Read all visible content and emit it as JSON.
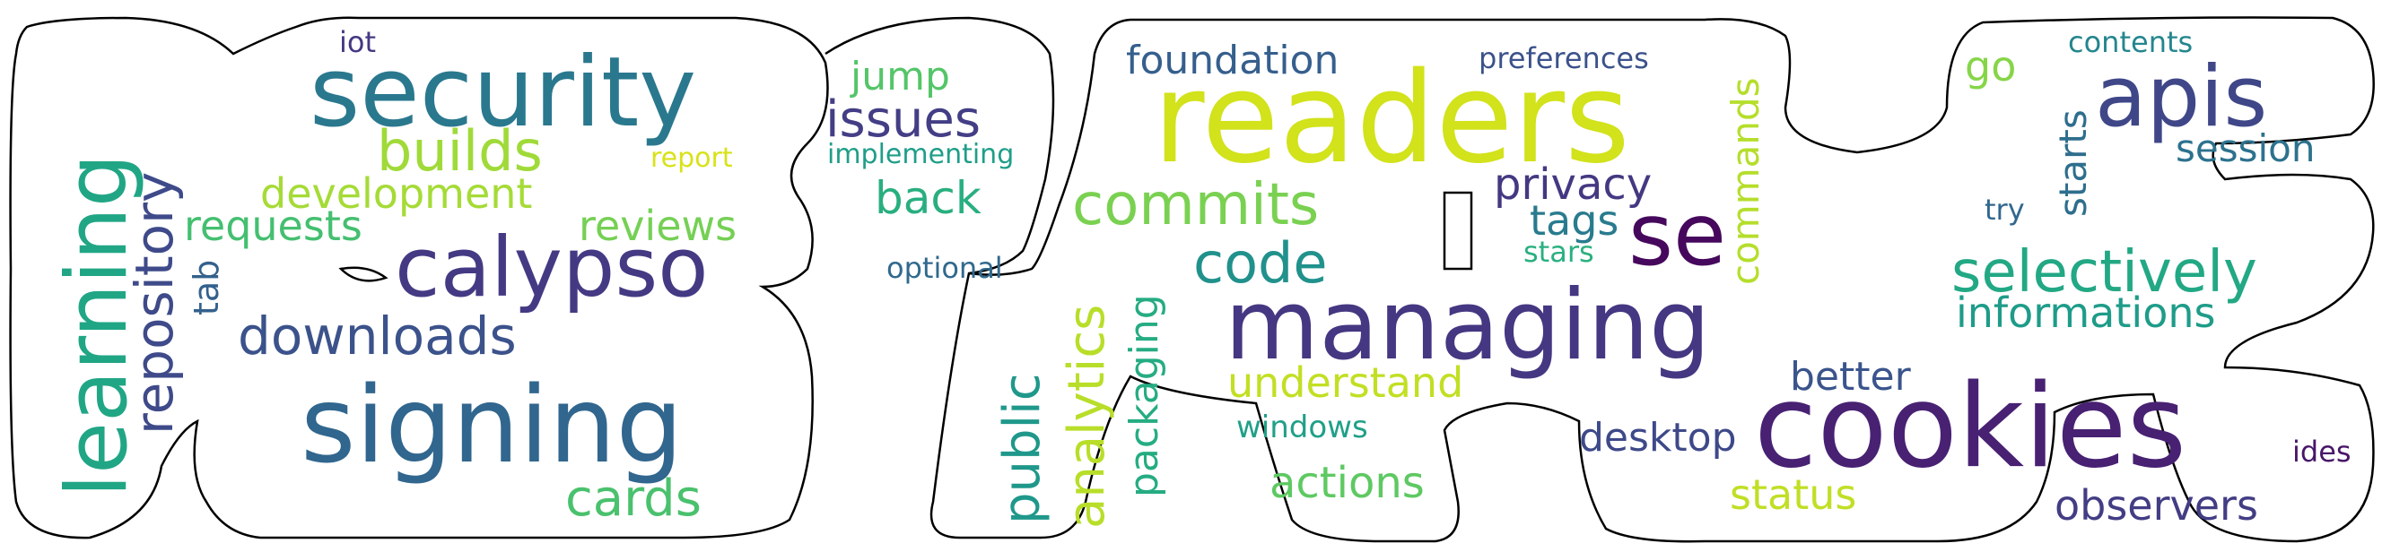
{
  "words": [
    {
      "text": "readers",
      "color": "#d2e21b"
    },
    {
      "text": "security",
      "color": "#2a788e"
    },
    {
      "text": "signing",
      "color": "#31668e"
    },
    {
      "text": "calypso",
      "color": "#443a83"
    },
    {
      "text": "cookies",
      "color": "#482173"
    },
    {
      "text": "managing",
      "color": "#453781"
    },
    {
      "text": "apis",
      "color": "#3f4788"
    },
    {
      "text": "se",
      "color": "#46085c"
    },
    {
      "text": "learning",
      "color": "#21a685"
    },
    {
      "text": "downloads",
      "color": "#3b528b"
    },
    {
      "text": "builds",
      "color": "#a0da39"
    },
    {
      "text": "commits",
      "color": "#7ad151"
    },
    {
      "text": "code",
      "color": "#21918c"
    },
    {
      "text": "cards",
      "color": "#4ac16d"
    },
    {
      "text": "repository",
      "color": "#3e4a89"
    },
    {
      "text": "selectively",
      "color": "#22a884"
    },
    {
      "text": "development",
      "color": "#a5db36"
    },
    {
      "text": "informations",
      "color": "#1e9c89"
    },
    {
      "text": "requests",
      "color": "#44bf70"
    },
    {
      "text": "reviews",
      "color": "#75d054"
    },
    {
      "text": "issues",
      "color": "#433e85"
    },
    {
      "text": "jump",
      "color": "#54c568"
    },
    {
      "text": "back",
      "color": "#29af7f"
    },
    {
      "text": "foundation",
      "color": "#355f8d"
    },
    {
      "text": "privacy",
      "color": "#453882"
    },
    {
      "text": "tags",
      "color": "#297b8e"
    },
    {
      "text": "commands",
      "color": "#b5de2b"
    },
    {
      "text": "understand",
      "color": "#c2df23"
    },
    {
      "text": "public",
      "color": "#1f988b"
    },
    {
      "text": "analytics",
      "color": "#b8de29"
    },
    {
      "text": "packaging",
      "color": "#25ac82"
    },
    {
      "text": "actions",
      "color": "#5ec962"
    },
    {
      "text": "desktop",
      "color": "#3e4989"
    },
    {
      "text": "better",
      "color": "#3a548c"
    },
    {
      "text": "status",
      "color": "#c0df25"
    },
    {
      "text": "observers",
      "color": "#433d84"
    },
    {
      "text": "session",
      "color": "#2c728e"
    },
    {
      "text": "starts",
      "color": "#2e6e8e"
    },
    {
      "text": "go",
      "color": "#86d549"
    },
    {
      "text": "contents",
      "color": "#24868e"
    },
    {
      "text": "try",
      "color": "#31678e"
    },
    {
      "text": "ides",
      "color": "#481769"
    },
    {
      "text": "windows",
      "color": "#1fa088"
    },
    {
      "text": "stars",
      "color": "#2ab07f"
    },
    {
      "text": "tab",
      "color": "#34618d"
    },
    {
      "text": "iot",
      "color": "#443983"
    },
    {
      "text": "report",
      "color": "#d8e219"
    },
    {
      "text": "optional",
      "color": "#30698e"
    },
    {
      "text": "implementing",
      "color": "#1f9e89"
    },
    {
      "text": "preferences",
      "color": "#3b528b"
    }
  ]
}
